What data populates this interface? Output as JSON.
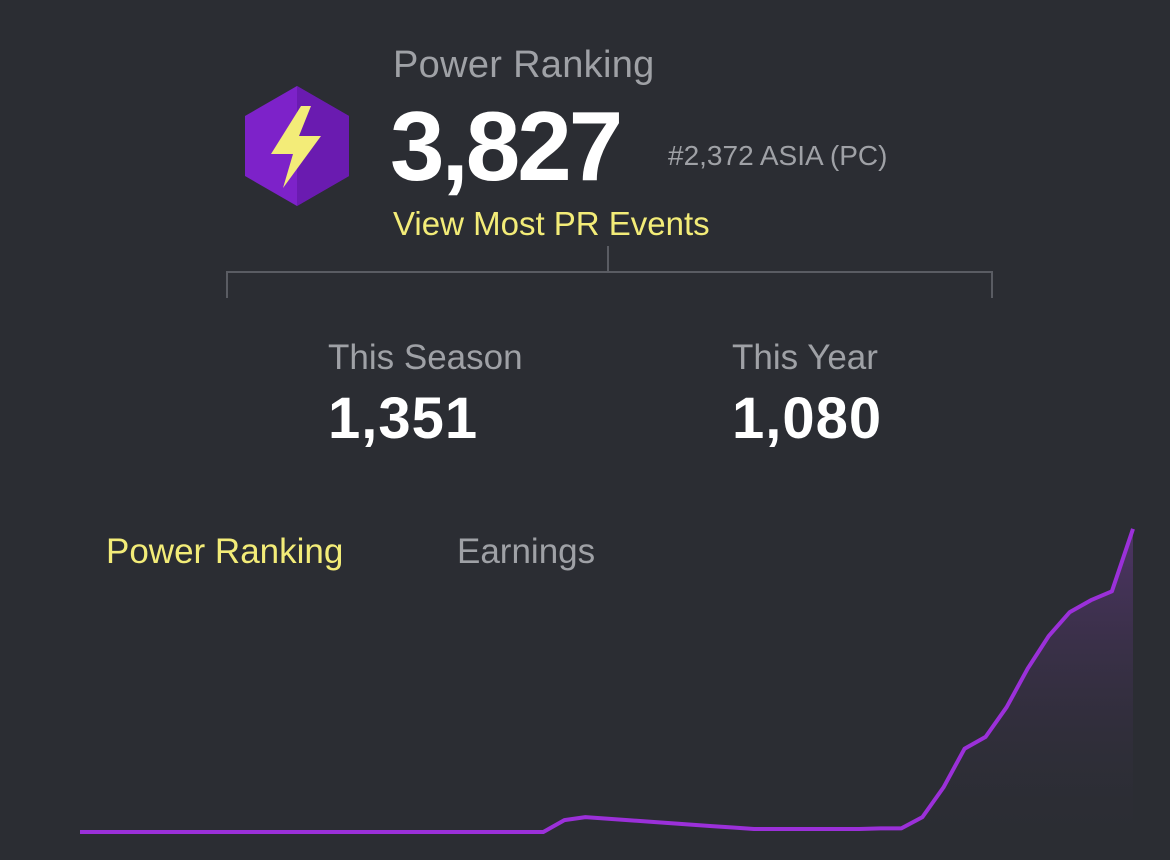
{
  "header": {
    "title": "Power Ranking",
    "value": "3,827",
    "rank": "#2,372 ASIA (PC)",
    "link": "View Most PR Events",
    "icon": "lightning-hexagon-icon"
  },
  "stats": [
    {
      "label": "This Season",
      "value": "1,351"
    },
    {
      "label": "This Year",
      "value": "1,080"
    }
  ],
  "tabs": [
    {
      "label": "Power Ranking",
      "active": true
    },
    {
      "label": "Earnings",
      "active": false
    }
  ],
  "colors": {
    "background": "#2b2d33",
    "accent": "#f3ec78",
    "line": "#9b30d9",
    "muted": "#9fa1a6"
  },
  "chart_data": {
    "type": "area",
    "x": [
      0,
      2,
      4,
      6,
      8,
      10,
      12,
      14,
      16,
      18,
      20,
      22,
      24,
      26,
      28,
      30,
      32,
      34,
      36,
      38,
      40,
      42,
      44,
      46,
      48,
      50,
      52,
      54,
      56,
      58,
      60,
      62,
      64,
      66,
      68,
      70,
      72,
      74,
      76,
      78,
      80,
      82,
      84,
      86,
      88,
      90,
      92,
      94,
      96,
      98,
      100
    ],
    "values": [
      0,
      0,
      0,
      0,
      0,
      0,
      0,
      0,
      0,
      0,
      0,
      0,
      0,
      0,
      0,
      0,
      0,
      0,
      0,
      0,
      0,
      0,
      0,
      0.4,
      0.5,
      0.45,
      0.4,
      0.35,
      0.3,
      0.25,
      0.2,
      0.15,
      0.1,
      0.1,
      0.1,
      0.1,
      0.1,
      0.1,
      0.12,
      0.12,
      0.5,
      1.5,
      2.8,
      3.2,
      4.2,
      5.5,
      6.6,
      7.4,
      7.8,
      8.1,
      10.2
    ],
    "ylim": [
      0,
      10.5
    ]
  }
}
